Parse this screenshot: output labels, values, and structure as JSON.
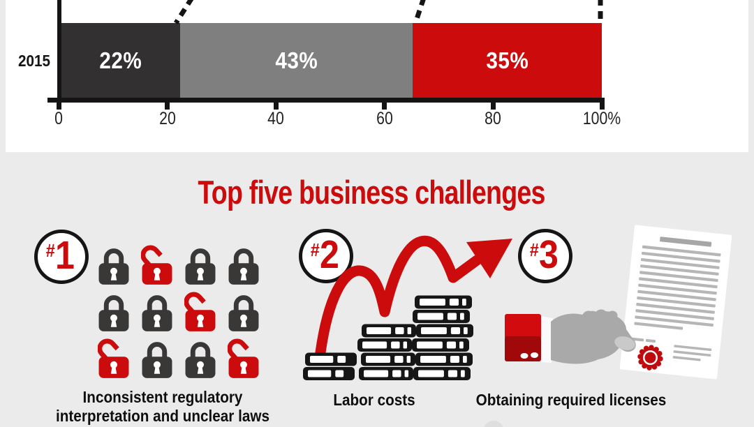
{
  "colors": {
    "accent_red": "#cc0b0d",
    "accent_dark_red": "#a00809",
    "dark_segment": "#333032",
    "gray_segment": "#7f7f7f",
    "page_bg": "#ebebeb",
    "panel_bg": "#ffffff"
  },
  "chart_data": {
    "type": "bar",
    "orientation": "horizontal_stacked",
    "title": "",
    "categories": [
      "2015"
    ],
    "segments": [
      {
        "value": 22,
        "label": "22%",
        "color": "#333032"
      },
      {
        "value": 43,
        "label": "43%",
        "color": "#7f7f7f"
      },
      {
        "value": 35,
        "label": "35%",
        "color": "#cc0b0d"
      }
    ],
    "x_ticks": [
      {
        "value": 0,
        "label": "0"
      },
      {
        "value": 20,
        "label": "20"
      },
      {
        "value": 40,
        "label": "40"
      },
      {
        "value": 60,
        "label": "60"
      },
      {
        "value": 80,
        "label": "80"
      },
      {
        "value": 100,
        "label": "100%"
      }
    ],
    "xlim": [
      0,
      100
    ],
    "grid": false,
    "legend": false,
    "annotations": "dashed connector lines to a partially cropped bar above"
  },
  "section": {
    "title": "Top five business challenges"
  },
  "challenges": [
    {
      "rank_symbol": "#",
      "rank": "1",
      "icon": "padlocks-grid",
      "caption_lines": [
        "Inconsistent regulatory",
        "interpretation and unclear laws"
      ]
    },
    {
      "rank_symbol": "#",
      "rank": "2",
      "icon": "coin-stacks-growth-arrow",
      "caption_lines": [
        "Labor costs"
      ]
    },
    {
      "rank_symbol": "#",
      "rank": "3",
      "icon": "hand-holding-license-document",
      "caption_lines": [
        "Obtaining required licenses"
      ]
    }
  ],
  "padlocks": {
    "rows": [
      [
        "locked",
        "unlocked",
        "locked",
        "locked"
      ],
      [
        "locked",
        "locked",
        "unlocked",
        "locked"
      ],
      [
        "unlocked",
        "locked",
        "locked",
        "unlocked"
      ]
    ],
    "locked_color": "#3a3737",
    "unlocked_color": "#cc0b0d"
  }
}
